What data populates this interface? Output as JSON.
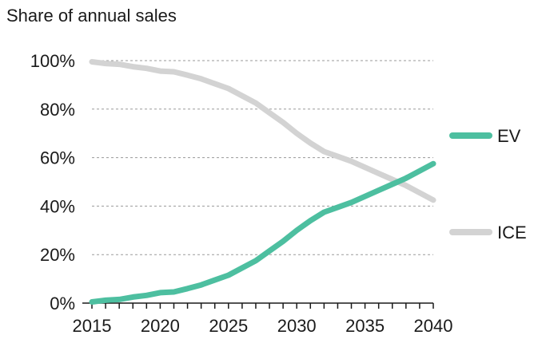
{
  "chart_data": {
    "type": "line",
    "title": "Share of annual sales",
    "xlabel": "",
    "ylabel": "",
    "xlim": [
      2015,
      2040
    ],
    "ylim": [
      0,
      100
    ],
    "x_ticks": [
      2015,
      2020,
      2025,
      2030,
      2035,
      2040
    ],
    "x_tick_labels": [
      "2015",
      "2020",
      "2025",
      "2030",
      "2035",
      "2040"
    ],
    "y_ticks": [
      0,
      20,
      40,
      60,
      80,
      100
    ],
    "y_tick_labels": [
      "0%",
      "20%",
      "40%",
      "60%",
      "80%",
      "100%"
    ],
    "grid": true,
    "legend_position": "right",
    "x": [
      2015,
      2016,
      2017,
      2018,
      2019,
      2020,
      2021,
      2022,
      2023,
      2024,
      2025,
      2026,
      2027,
      2028,
      2029,
      2030,
      2031,
      2032,
      2033,
      2034,
      2035,
      2036,
      2037,
      2038,
      2039,
      2040
    ],
    "series": [
      {
        "name": "EV",
        "color": "#4dbfa0",
        "values": [
          0.5,
          1.2,
          1.5,
          2.5,
          3.2,
          4.3,
          4.6,
          6.0,
          7.5,
          9.5,
          11.5,
          14.5,
          17.5,
          21.5,
          25.5,
          30.0,
          34.0,
          37.5,
          39.5,
          41.5,
          44.0,
          46.5,
          49.0,
          51.5,
          54.5,
          57.5
        ]
      },
      {
        "name": "ICE",
        "color": "#d3d3d3",
        "values": [
          99.5,
          98.8,
          98.5,
          97.5,
          96.8,
          95.7,
          95.4,
          94.0,
          92.5,
          90.5,
          88.5,
          85.5,
          82.5,
          78.5,
          74.5,
          70.0,
          66.0,
          62.5,
          60.5,
          58.5,
          56.0,
          53.5,
          51.0,
          48.5,
          45.5,
          42.5
        ]
      }
    ]
  }
}
